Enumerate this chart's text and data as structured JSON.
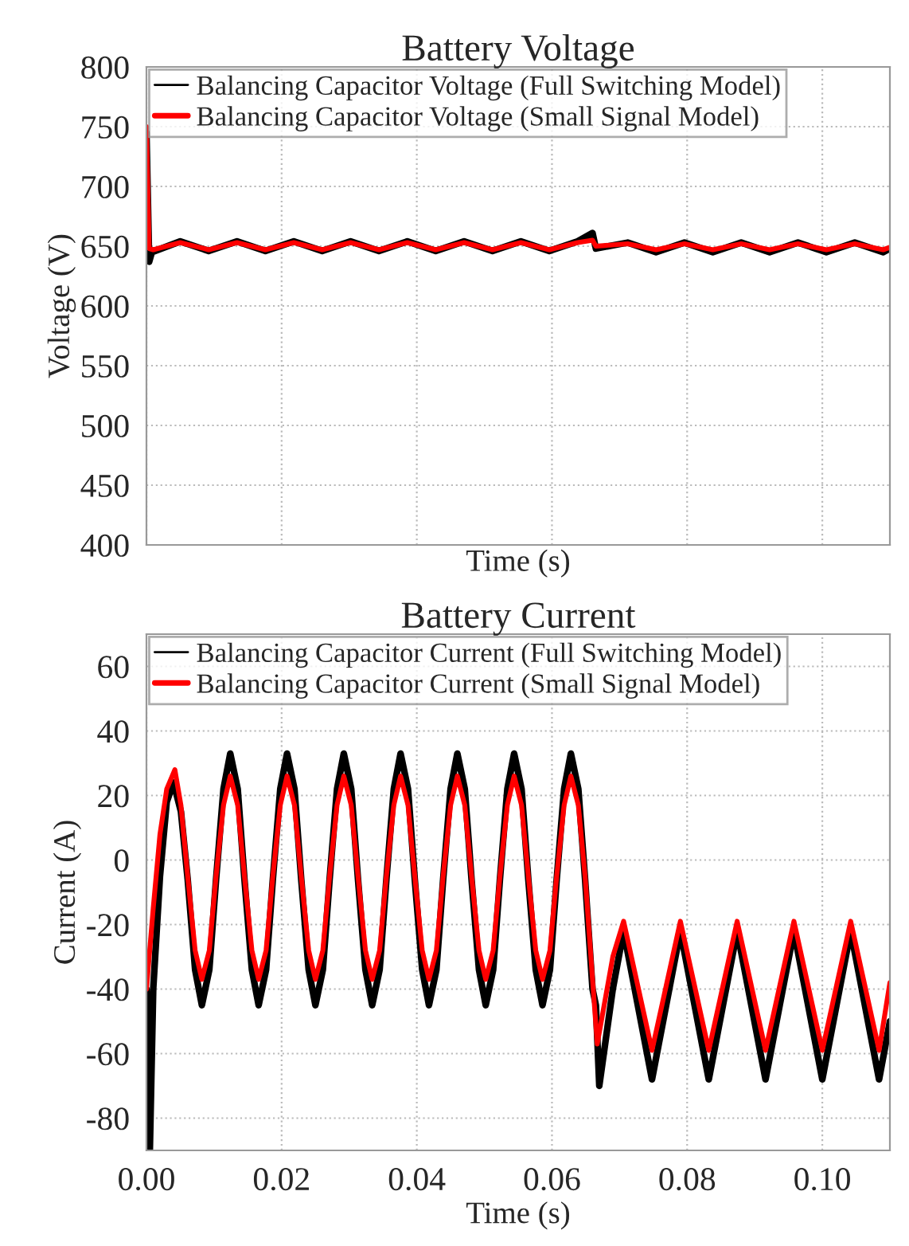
{
  "chart_data": [
    {
      "type": "line",
      "title": "Battery Voltage",
      "xlabel": "Time (s)",
      "ylabel": "Voltage (V)",
      "xlim": [
        0,
        0.11
      ],
      "xticks": [
        {
          "value": 0,
          "label": null
        },
        {
          "value": 0.02,
          "label": null
        },
        {
          "value": 0.04,
          "label": null
        },
        {
          "value": 0.06,
          "label": null
        },
        {
          "value": 0.08,
          "label": null
        },
        {
          "value": 0.1,
          "label": null
        }
      ],
      "ylim": [
        400,
        800
      ],
      "yticks": [
        400,
        450,
        500,
        550,
        600,
        650,
        700,
        750,
        800
      ],
      "grid": true,
      "legend": "top left",
      "tick_labels": "y",
      "series": [
        {
          "name": "Balancing Capacitor Voltage (Full Switching Model)",
          "color": "#000000",
          "x": [
            0,
            0.0004,
            0.0008,
            0.005,
            0.0092,
            0.0134,
            0.0176,
            0.0218,
            0.026,
            0.0302,
            0.0344,
            0.0386,
            0.0428,
            0.047,
            0.0512,
            0.0554,
            0.0596,
            0.0638,
            0.066,
            0.0665,
            0.0712,
            0.0754,
            0.0796,
            0.0838,
            0.088,
            0.0922,
            0.0964,
            0.1006,
            0.1048,
            0.109,
            0.11
          ],
          "values": [
            745,
            637,
            645,
            654,
            646,
            654,
            646,
            654,
            646,
            654,
            646,
            654,
            646,
            654,
            646,
            654,
            646,
            654,
            661,
            648,
            653,
            645,
            653,
            645,
            653,
            645,
            653,
            645,
            653,
            645,
            648
          ]
        },
        {
          "name": "Balancing Capacitor Voltage (Small Signal Model)",
          "color": "#ff0000",
          "x": [
            0,
            0.0004,
            0.001,
            0.005,
            0.0092,
            0.0134,
            0.0176,
            0.0218,
            0.026,
            0.0302,
            0.0344,
            0.0386,
            0.0428,
            0.047,
            0.0512,
            0.0554,
            0.0596,
            0.0638,
            0.066,
            0.0665,
            0.0712,
            0.0754,
            0.0796,
            0.0838,
            0.088,
            0.0922,
            0.0964,
            0.1006,
            0.1048,
            0.109,
            0.11
          ],
          "values": [
            750,
            648,
            647,
            653,
            647,
            653,
            647,
            653,
            647,
            653,
            647,
            653,
            647,
            653,
            647,
            653,
            647,
            653,
            655,
            650,
            652,
            647,
            652,
            647,
            652,
            647,
            652,
            647,
            652,
            647,
            649
          ]
        }
      ]
    },
    {
      "type": "line",
      "title": "Battery Current",
      "xlabel": "Time (s)",
      "ylabel": "Current (A)",
      "xlim": [
        0,
        0.11
      ],
      "xticks": [
        {
          "value": 0,
          "label": "0.00"
        },
        {
          "value": 0.02,
          "label": "0.02"
        },
        {
          "value": 0.04,
          "label": "0.04"
        },
        {
          "value": 0.06,
          "label": "0.06"
        },
        {
          "value": 0.08,
          "label": "0.08"
        },
        {
          "value": 0.1,
          "label": "0.10"
        }
      ],
      "ylim": [
        -90,
        70
      ],
      "yticks": [
        -80,
        -60,
        -40,
        -20,
        0,
        20,
        40,
        60
      ],
      "grid": true,
      "legend": "top left",
      "series": [
        {
          "name": "Balancing Capacitor Current (Full Switching Model)",
          "color": "#000000",
          "x": [
            0,
            0.0005,
            0.001,
            0.002,
            0.003,
            0.004,
            0.0051,
            0.0061,
            0.0072,
            0.0082,
            0.0093,
            0.0103,
            0.0114,
            0.0124,
            0.0135,
            0.0145,
            0.0156,
            0.0166,
            0.0177,
            0.0187,
            0.0198,
            0.0208,
            0.0219,
            0.0229,
            0.024,
            0.025,
            0.0261,
            0.0271,
            0.0282,
            0.0292,
            0.0303,
            0.0313,
            0.0324,
            0.0334,
            0.0345,
            0.0355,
            0.0366,
            0.0376,
            0.0387,
            0.0397,
            0.0408,
            0.0418,
            0.0429,
            0.0439,
            0.045,
            0.046,
            0.0471,
            0.0481,
            0.0492,
            0.0502,
            0.0513,
            0.0523,
            0.0534,
            0.0544,
            0.0555,
            0.0565,
            0.0576,
            0.0586,
            0.0597,
            0.0607,
            0.0618,
            0.0628,
            0.0639,
            0.0649,
            0.066,
            0.0665,
            0.067,
            0.069,
            0.0706,
            0.0727,
            0.0748,
            0.0769,
            0.079,
            0.0811,
            0.0832,
            0.0853,
            0.0874,
            0.0895,
            0.0916,
            0.0937,
            0.0958,
            0.0979,
            0.1,
            0.1021,
            0.1042,
            0.1063,
            0.1084,
            0.11
          ],
          "values": [
            -40,
            -90,
            -40,
            -5,
            18,
            24,
            15,
            -6,
            -34,
            -45,
            -34,
            -6,
            22,
            33,
            22,
            -6,
            -34,
            -45,
            -34,
            -6,
            22,
            33,
            22,
            -6,
            -34,
            -45,
            -34,
            -6,
            22,
            33,
            22,
            -6,
            -34,
            -45,
            -34,
            -6,
            22,
            33,
            22,
            -6,
            -34,
            -45,
            -34,
            -6,
            22,
            33,
            22,
            -6,
            -34,
            -45,
            -34,
            -6,
            22,
            33,
            22,
            -6,
            -34,
            -45,
            -34,
            -6,
            22,
            33,
            22,
            -6,
            -40,
            -45,
            -70,
            -40,
            -22,
            -45,
            -68,
            -45,
            -22,
            -45,
            -68,
            -45,
            -22,
            -45,
            -68,
            -45,
            -22,
            -45,
            -68,
            -45,
            -22,
            -45,
            -68,
            -50
          ]
        },
        {
          "name": "Balancing Capacitor Current (Small Signal Model)",
          "color": "#ff0000",
          "x": [
            0,
            0.001,
            0.002,
            0.003,
            0.0042,
            0.0051,
            0.0061,
            0.0072,
            0.0082,
            0.0093,
            0.0103,
            0.0114,
            0.0124,
            0.0135,
            0.0145,
            0.0156,
            0.0166,
            0.0177,
            0.0187,
            0.0198,
            0.0208,
            0.0219,
            0.0229,
            0.024,
            0.025,
            0.0261,
            0.0271,
            0.0282,
            0.0292,
            0.0303,
            0.0313,
            0.0324,
            0.0334,
            0.0345,
            0.0355,
            0.0366,
            0.0376,
            0.0387,
            0.0397,
            0.0408,
            0.0418,
            0.0429,
            0.0439,
            0.045,
            0.046,
            0.0471,
            0.0481,
            0.0492,
            0.0502,
            0.0513,
            0.0523,
            0.0534,
            0.0544,
            0.0555,
            0.0565,
            0.0576,
            0.0586,
            0.0597,
            0.0607,
            0.0618,
            0.0628,
            0.0639,
            0.0649,
            0.066,
            0.0667,
            0.069,
            0.0706,
            0.0727,
            0.0748,
            0.0769,
            0.079,
            0.0811,
            0.0832,
            0.0853,
            0.0874,
            0.0895,
            0.0916,
            0.0937,
            0.0958,
            0.0979,
            0.1,
            0.1021,
            0.1042,
            0.1063,
            0.1084,
            0.11
          ],
          "values": [
            -40,
            -15,
            8,
            22,
            28,
            17,
            -5,
            -28,
            -37,
            -28,
            -5,
            17,
            26,
            17,
            -5,
            -28,
            -37,
            -28,
            -5,
            17,
            26,
            17,
            -5,
            -28,
            -37,
            -28,
            -5,
            17,
            26,
            17,
            -5,
            -28,
            -37,
            -28,
            -5,
            17,
            26,
            17,
            -5,
            -28,
            -37,
            -28,
            -5,
            17,
            26,
            17,
            -5,
            -28,
            -37,
            -28,
            -5,
            17,
            26,
            17,
            -5,
            -28,
            -37,
            -28,
            -5,
            17,
            26,
            17,
            -5,
            -37,
            -57,
            -30,
            -19,
            -39,
            -59,
            -39,
            -19,
            -39,
            -59,
            -39,
            -19,
            -39,
            -59,
            -39,
            -19,
            -39,
            -59,
            -39,
            -19,
            -39,
            -59,
            -38
          ]
        }
      ]
    }
  ]
}
